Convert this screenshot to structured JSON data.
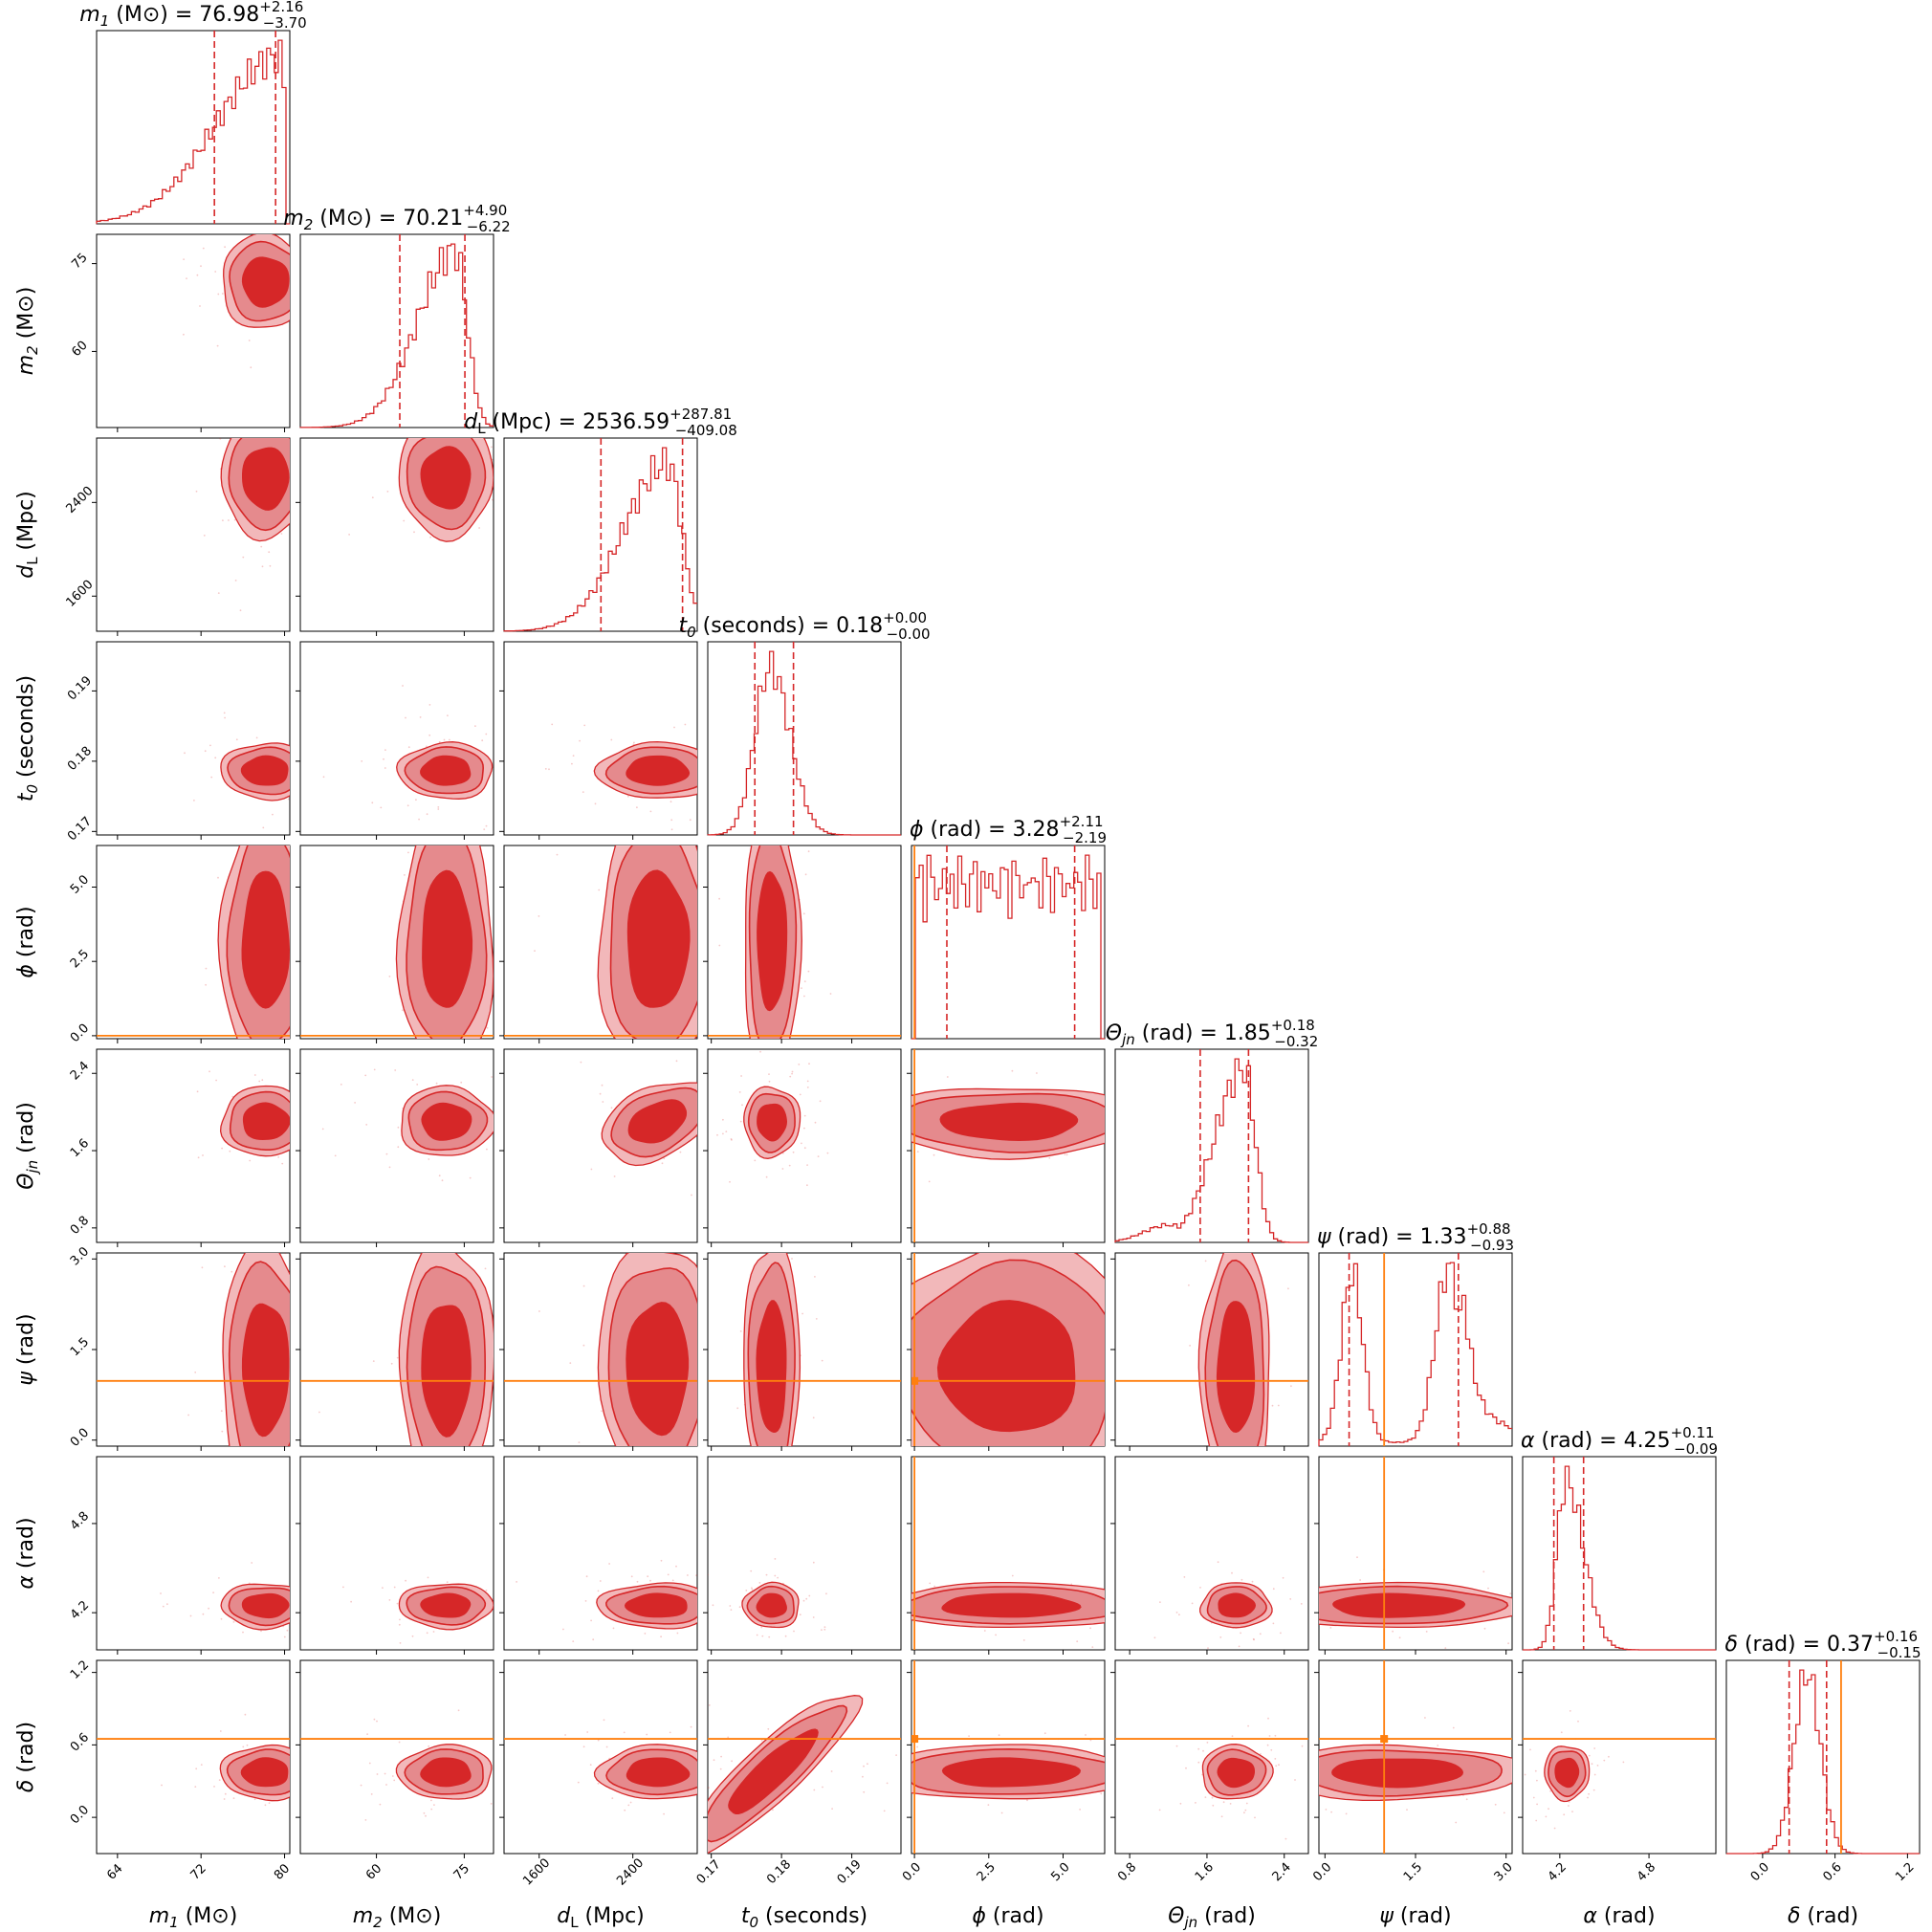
{
  "chart_data": {
    "type": "corner",
    "colors": {
      "posterior": "#d62728",
      "truth": "#ff7f0e",
      "frame": "#000000"
    },
    "parameters": [
      {
        "key": "m1",
        "label": "m",
        "sub": "1",
        "unit": "(M⊙)",
        "median": "76.98",
        "plus": "+2.16",
        "minus": "−3.70",
        "range": [
          62,
          80.5
        ],
        "ticks": [
          "64",
          "72",
          "80"
        ],
        "tick_values": [
          64,
          72,
          80
        ],
        "hist_mode": 79.5,
        "hist_sigma": [
          6.0,
          0.8
        ],
        "quantiles": [
          73.28,
          79.14
        ],
        "truth": null
      },
      {
        "key": "m2",
        "label": "m",
        "sub": "2",
        "unit": "(M⊙)",
        "median": "70.21",
        "plus": "+4.90",
        "minus": "−6.22",
        "range": [
          47,
          80
        ],
        "ticks": [
          "60",
          "75"
        ],
        "tick_values": [
          60,
          75
        ],
        "hist_mode": 73.5,
        "hist_sigma": [
          6.5,
          2.0
        ],
        "quantiles": [
          63.99,
          75.11
        ],
        "truth": null
      },
      {
        "key": "dL",
        "label": "d",
        "sub": "L",
        "unit": "(Mpc)",
        "median": "2536.59",
        "plus": "+287.81",
        "minus": "−409.08",
        "range": [
          1300,
          2950
        ],
        "ticks": [
          "1600",
          "2400"
        ],
        "tick_values": [
          1600,
          2400
        ],
        "hist_mode": 2700,
        "hist_sigma": [
          380,
          120
        ],
        "quantiles": [
          2127.51,
          2824.4
        ],
        "truth": null
      },
      {
        "key": "t0",
        "label": "t",
        "sub": "0",
        "unit": "(seconds)",
        "median": "0.18",
        "plus": "+0.00",
        "minus": "−0.00",
        "range": [
          0.1695,
          0.197
        ],
        "ticks": [
          "0.17",
          "0.18",
          "0.19"
        ],
        "tick_values": [
          0.17,
          0.18,
          0.19
        ],
        "hist_mode": 0.1784,
        "hist_sigma": [
          0.0022,
          0.0028
        ],
        "quantiles": [
          0.1762,
          0.1817
        ],
        "truth": null
      },
      {
        "key": "phi",
        "label": "ϕ",
        "sub": "",
        "unit": "(rad)",
        "median": "3.28",
        "plus": "+2.11",
        "minus": "−2.19",
        "range": [
          -0.1,
          6.4
        ],
        "ticks": [
          "0.0",
          "2.5",
          "5.0"
        ],
        "tick_values": [
          0,
          2.5,
          5
        ],
        "hist_mode": null,
        "hist_sigma": null,
        "quantiles": [
          1.09,
          5.39
        ],
        "truth": 0.0
      },
      {
        "key": "theta_jn",
        "label": "Θ",
        "sub": "jn",
        "unit": "(rad)",
        "median": "1.85",
        "plus": "+0.18",
        "minus": "−0.32",
        "range": [
          0.65,
          2.65
        ],
        "ticks": [
          "0.8",
          "1.6",
          "2.4"
        ],
        "tick_values": [
          0.8,
          1.6,
          2.4
        ],
        "hist_mode": 1.98,
        "hist_sigma": [
          0.3,
          0.12
        ],
        "quantiles": [
          1.53,
          2.03
        ],
        "truth": null
      },
      {
        "key": "psi",
        "label": "ψ",
        "sub": "",
        "unit": "(rad)",
        "median": "1.33",
        "plus": "+0.88",
        "minus": "−0.93",
        "range": [
          -0.1,
          3.1
        ],
        "ticks": [
          "0.0",
          "1.5",
          "3.0"
        ],
        "tick_values": [
          0,
          1.5,
          3.0
        ],
        "hist_mode": null,
        "hist_sigma": null,
        "quantiles": [
          0.4,
          2.21
        ],
        "truth": 0.98
      },
      {
        "key": "alpha",
        "label": "α",
        "sub": "",
        "unit": "(rad)",
        "median": "4.25",
        "plus": "+0.11",
        "minus": "−0.09",
        "range": [
          3.95,
          5.25
        ],
        "ticks": [
          "4.2",
          "4.8"
        ],
        "tick_values": [
          4.2,
          4.8
        ],
        "hist_mode": 4.24,
        "hist_sigma": [
          0.06,
          0.12
        ],
        "quantiles": [
          4.16,
          4.36
        ],
        "truth": null
      },
      {
        "key": "delta",
        "label": "δ",
        "sub": "",
        "unit": "(rad)",
        "median": "0.37",
        "plus": "+0.16",
        "minus": "−0.15",
        "range": [
          -0.3,
          1.3
        ],
        "ticks": [
          "0.0",
          "0.6",
          "1.2"
        ],
        "tick_values": [
          0,
          0.6,
          1.2
        ],
        "hist_mode": 0.37,
        "hist_sigma": [
          0.11,
          0.11
        ],
        "quantiles": [
          0.22,
          0.53
        ],
        "truth": 0.65
      }
    ],
    "title_sep": " = "
  }
}
